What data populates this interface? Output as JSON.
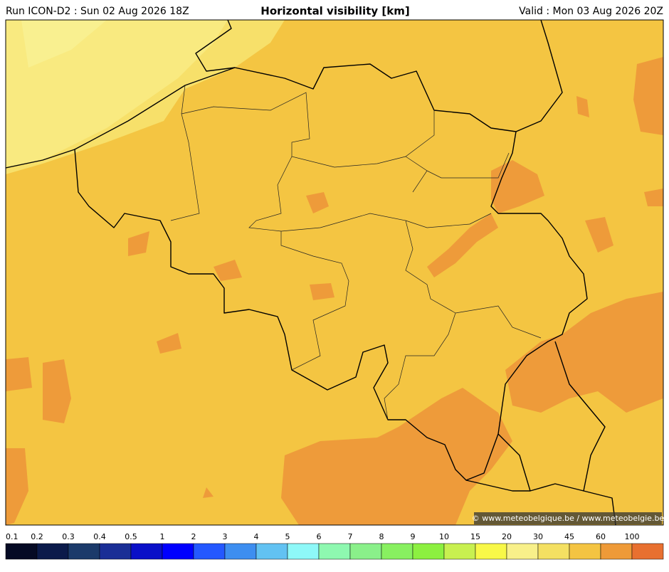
{
  "header": {
    "run": "Run ICON-D2 : Sun 02 Aug 2026 18Z",
    "title": "Horizontal visibility [km]",
    "valid": "Valid : Mon 03 Aug 2026 20Z"
  },
  "map": {
    "credit": "© www.meteobelgique.be / www.meteobelgie.be"
  },
  "colorbar": {
    "labels": [
      0.1,
      0.2,
      0.3,
      0.4,
      0.5,
      1,
      2,
      3,
      4,
      5,
      6,
      7,
      8,
      9,
      10,
      15,
      20,
      30,
      45,
      60,
      100
    ],
    "colors": [
      "#050a24",
      "#0b1a4a",
      "#1b3a6a",
      "#1a2e96",
      "#0a10c8",
      "#0000ff",
      "#2458ff",
      "#3d8ef0",
      "#62c2f2",
      "#8ef8f8",
      "#8ef8b0",
      "#8af08a",
      "#88f060",
      "#8cf040",
      "#c8f050",
      "#f8f848",
      "#f8f08a",
      "#f4e062",
      "#f4c442",
      "#ee9a38",
      "#e87030"
    ]
  }
}
